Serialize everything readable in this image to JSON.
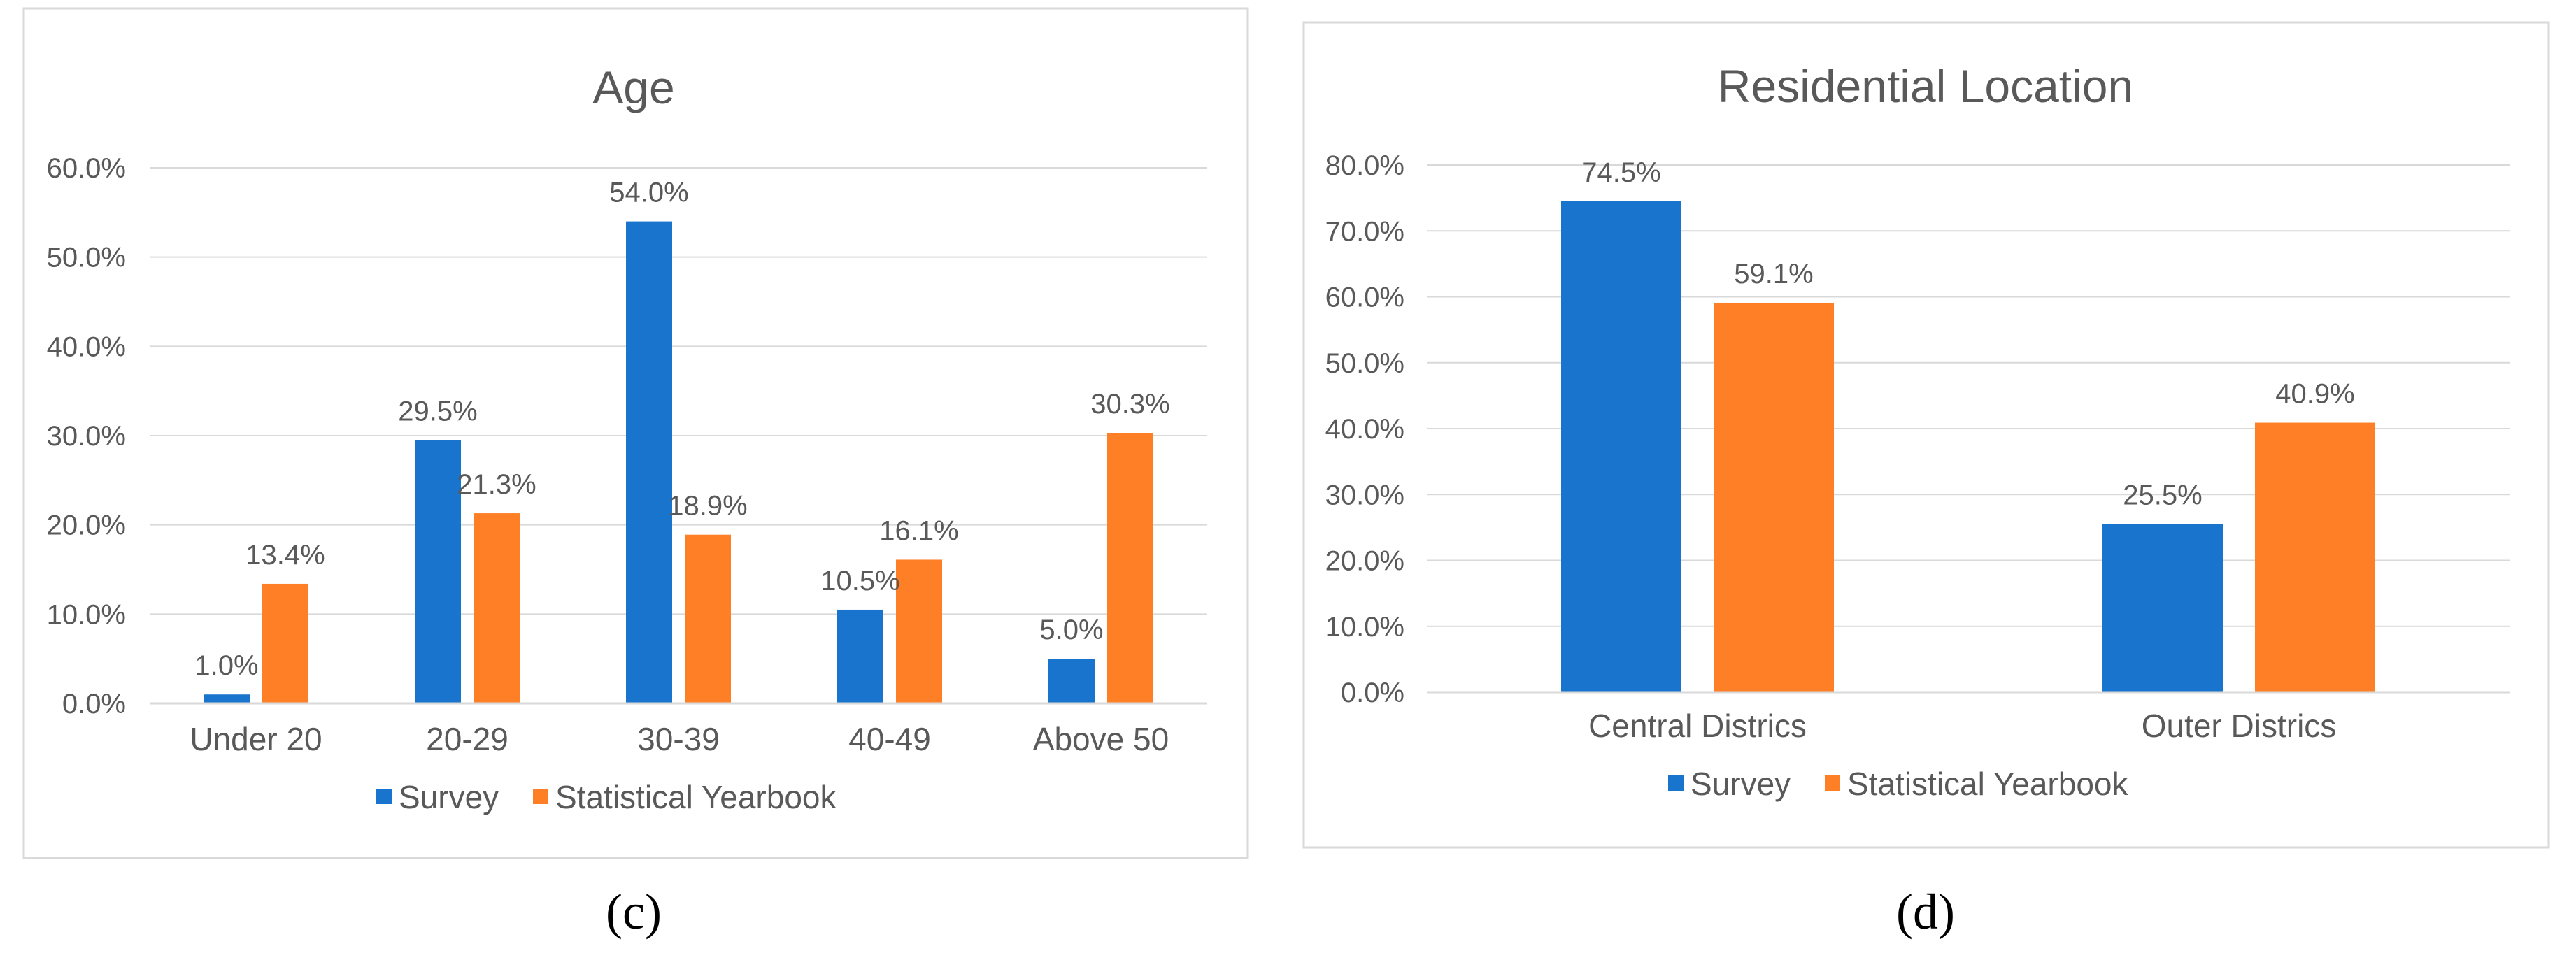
{
  "chart_data": [
    {
      "type": "bar",
      "title": "Age",
      "caption": "(c)",
      "categories": [
        "Under 20",
        "20-29",
        "30-39",
        "40-49",
        "Above 50"
      ],
      "series": [
        {
          "name": "Survey",
          "color": "#1874CD",
          "values": [
            1.0,
            29.5,
            54.0,
            10.5,
            5.0
          ]
        },
        {
          "name": "Statistical Yearbook",
          "color": "#FF7F27",
          "values": [
            13.4,
            21.3,
            18.9,
            16.1,
            30.3
          ]
        }
      ],
      "ylim": [
        0,
        60
      ],
      "yticks": [
        "0.0%",
        "10.0%",
        "20.0%",
        "30.0%",
        "40.0%",
        "50.0%",
        "60.0%"
      ],
      "value_labels": [
        [
          "1.0%",
          "29.5%",
          "54.0%",
          "10.5%",
          "5.0%"
        ],
        [
          "13.4%",
          "21.3%",
          "18.9%",
          "16.1%",
          "30.3%"
        ]
      ],
      "xlabel": "",
      "ylabel": "",
      "grid": true,
      "legend": "bottom"
    },
    {
      "type": "bar",
      "title": "Residential Location",
      "caption": "(d)",
      "categories": [
        "Central Districs",
        "Outer Districs"
      ],
      "series": [
        {
          "name": "Survey",
          "color": "#1874CD",
          "values": [
            74.5,
            25.5
          ]
        },
        {
          "name": "Statistical Yearbook",
          "color": "#FF7F27",
          "values": [
            59.1,
            40.9
          ]
        }
      ],
      "ylim": [
        0,
        80
      ],
      "yticks": [
        "0.0%",
        "10.0%",
        "20.0%",
        "30.0%",
        "40.0%",
        "50.0%",
        "60.0%",
        "70.0%",
        "80.0%"
      ],
      "value_labels": [
        [
          "74.5%",
          "25.5%"
        ],
        [
          "59.1%",
          "40.9%"
        ]
      ],
      "xlabel": "",
      "ylabel": "",
      "grid": true,
      "legend": "bottom"
    }
  ]
}
